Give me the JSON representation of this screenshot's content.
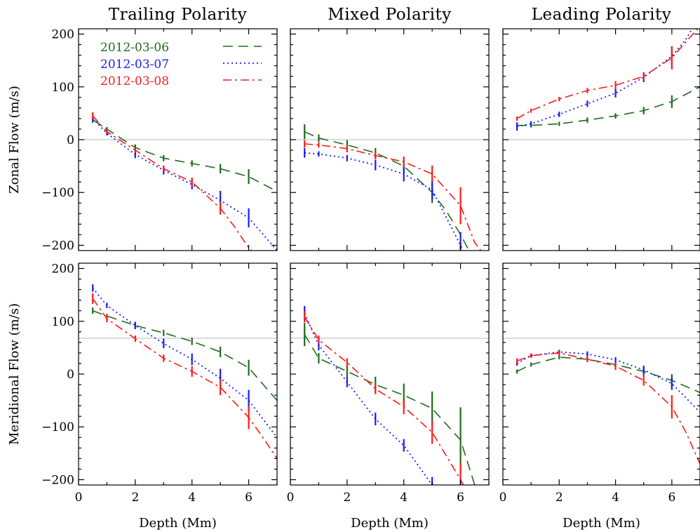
{
  "chart_data": {
    "type": "line",
    "layout": "3 columns x 2 rows",
    "column_titles": [
      "Trailing Polarity",
      "Mixed Polarity",
      "Leading Polarity"
    ],
    "row_ylabels": [
      "Zonal Flow (m/s)",
      "Meridional Flow (m/s)"
    ],
    "xlabel": "Depth (Mm)",
    "xlim": [
      0,
      7
    ],
    "ylim": [
      -210,
      210
    ],
    "xticks": [
      0,
      2,
      4,
      6
    ],
    "yticks": [
      -200,
      -100,
      0,
      100,
      200
    ],
    "xtick_labels": [
      "0",
      "2",
      "4",
      "6"
    ],
    "ytick_labels": [
      "−200",
      "−100",
      "0",
      "100",
      "200"
    ],
    "legend": {
      "placement": "top-left of first panel",
      "entries": [
        {
          "label": "2012-03-06",
          "style": "dashed",
          "color": "#1f6b1f"
        },
        {
          "label": "2012-03-07",
          "style": "dotted",
          "color": "#1a1aff"
        },
        {
          "label": "2012-03-08",
          "style": "dash-dot",
          "color": "#ff1a1a"
        }
      ]
    },
    "panels": [
      {
        "column": "Trailing Polarity",
        "row": "Zonal Flow (m/s)",
        "zero_line": 0,
        "series": [
          {
            "label": "2012-03-06",
            "x": [
              0.5,
              1,
              2,
              3,
              4,
              5,
              6,
              7
            ],
            "y": [
              38,
              20,
              -15,
              -35,
              -45,
              -55,
              -70,
              -98
            ],
            "err": [
              6,
              4,
              6,
              6,
              6,
              9,
              14,
              0
            ]
          },
          {
            "label": "2012-03-07",
            "x": [
              0.5,
              1,
              2,
              3,
              4,
              5,
              6,
              7
            ],
            "y": [
              40,
              12,
              -28,
              -58,
              -85,
              -115,
              -148,
              -210
            ],
            "err": [
              6,
              4,
              7,
              8,
              9,
              18,
              18,
              0
            ]
          },
          {
            "label": "2012-03-08",
            "x": [
              0.5,
              1,
              2,
              3,
              4,
              5,
              5.5,
              6,
              6.5
            ],
            "y": [
              45,
              15,
              -20,
              -55,
              -80,
              -130,
              -165,
              -205,
              -230
            ],
            "err": [
              7,
              4,
              5,
              6,
              8,
              12,
              0,
              0,
              0
            ]
          }
        ]
      },
      {
        "column": "Mixed Polarity",
        "row": "Zonal Flow (m/s)",
        "zero_line": 0,
        "series": [
          {
            "label": "2012-03-06",
            "x": [
              0.5,
              1,
              2,
              3,
              4,
              5,
              5.5,
              6,
              6.5
            ],
            "y": [
              15,
              3,
              -10,
              -25,
              -50,
              -100,
              -135,
              -180,
              -230
            ],
            "err": [
              14,
              7,
              9,
              9,
              12,
              20,
              0,
              0,
              0
            ]
          },
          {
            "label": "2012-03-07",
            "x": [
              0.5,
              1,
              2,
              3,
              4,
              5,
              6,
              6.5
            ],
            "y": [
              -25,
              -27,
              -35,
              -48,
              -65,
              -95,
              -200,
              -260
            ],
            "err": [
              9,
              5,
              6,
              10,
              14,
              18,
              25,
              0
            ]
          },
          {
            "label": "2012-03-08",
            "x": [
              0.5,
              1,
              2,
              3,
              4,
              5,
              6,
              6.5,
              7
            ],
            "y": [
              -8,
              -10,
              -17,
              -30,
              -42,
              -65,
              -125,
              -195,
              -230
            ],
            "err": [
              7,
              5,
              7,
              7,
              10,
              16,
              35,
              0,
              0
            ]
          }
        ]
      },
      {
        "column": "Leading Polarity",
        "row": "Zonal Flow (m/s)",
        "zero_line": 0,
        "series": [
          {
            "label": "2012-03-06",
            "x": [
              0.5,
              1,
              2,
              3,
              4,
              5,
              6,
              7
            ],
            "y": [
              27,
              27,
              30,
              37,
              45,
              55,
              72,
              100
            ],
            "err": [
              4,
              4,
              4,
              5,
              5,
              7,
              12,
              0
            ]
          },
          {
            "label": "2012-03-07",
            "x": [
              0.5,
              1,
              2,
              3,
              4,
              5,
              6,
              6.5,
              7
            ],
            "y": [
              25,
              30,
              48,
              68,
              88,
              118,
              158,
              190,
              235
            ],
            "err": [
              8,
              5,
              5,
              6,
              8,
              9,
              18,
              0,
              0
            ]
          },
          {
            "label": "2012-03-08",
            "x": [
              0.5,
              1,
              2,
              3,
              4,
              5,
              6,
              6.5,
              7
            ],
            "y": [
              40,
              55,
              77,
              93,
              103,
              120,
              155,
              185,
              215
            ],
            "err": [
              4,
              4,
              4,
              5,
              8,
              8,
              22,
              0,
              0
            ]
          }
        ]
      },
      {
        "column": "Trailing Polarity",
        "row": "Meridional Flow (m/s)",
        "zero_line": 68,
        "series": [
          {
            "label": "2012-03-06",
            "x": [
              0.5,
              1,
              2,
              3,
              4,
              5,
              6,
              7
            ],
            "y": [
              120,
              110,
              92,
              78,
              62,
              42,
              12,
              -50
            ],
            "err": [
              6,
              4,
              6,
              6,
              7,
              10,
              15,
              0
            ]
          },
          {
            "label": "2012-03-07",
            "x": [
              0.5,
              1,
              2,
              3,
              4,
              5,
              6,
              6.5,
              7
            ],
            "y": [
              163,
              130,
              92,
              58,
              28,
              -8,
              -50,
              -85,
              -120
            ],
            "err": [
              7,
              5,
              7,
              9,
              11,
              18,
              20,
              0,
              0
            ]
          },
          {
            "label": "2012-03-08",
            "x": [
              0.5,
              1,
              2,
              3,
              4,
              5,
              6,
              6.5,
              7
            ],
            "y": [
              143,
              105,
              67,
              30,
              5,
              -25,
              -82,
              -120,
              -160
            ],
            "err": [
              10,
              7,
              6,
              7,
              10,
              15,
              22,
              0,
              0
            ]
          }
        ]
      },
      {
        "column": "Mixed Polarity",
        "row": "Meridional Flow (m/s)",
        "zero_line": 68,
        "series": [
          {
            "label": "2012-03-06",
            "x": [
              0.5,
              1,
              2,
              3,
              4,
              5,
              6,
              6.5
            ],
            "y": [
              75,
              30,
              5,
              -20,
              -40,
              -65,
              -125,
              -210
            ],
            "err": [
              22,
              10,
              10,
              15,
              22,
              32,
              62,
              0
            ]
          },
          {
            "label": "2012-03-07",
            "x": [
              0.5,
              1,
              2,
              3,
              4,
              5,
              5.5
            ],
            "y": [
              115,
              55,
              -15,
              -85,
              -135,
              -210,
              -250
            ],
            "err": [
              14,
              10,
              10,
              12,
              12,
              15,
              0
            ]
          },
          {
            "label": "2012-03-08",
            "x": [
              0.5,
              1,
              2,
              3,
              4,
              5,
              6,
              6.5
            ],
            "y": [
              108,
              65,
              22,
              -28,
              -62,
              -110,
              -200,
              -250
            ],
            "err": [
              10,
              8,
              8,
              10,
              14,
              22,
              30,
              0
            ]
          }
        ]
      },
      {
        "column": "Leading Polarity",
        "row": "Meridional Flow (m/s)",
        "zero_line": 68,
        "series": [
          {
            "label": "2012-03-06",
            "x": [
              0.5,
              1,
              2,
              3,
              4,
              5,
              6,
              7
            ],
            "y": [
              5,
              18,
              32,
              28,
              18,
              5,
              -12,
              -35
            ],
            "err": [
              4,
              4,
              4,
              5,
              5,
              8,
              12,
              0
            ]
          },
          {
            "label": "2012-03-07",
            "x": [
              0.5,
              1,
              2,
              3,
              4,
              5,
              6,
              7
            ],
            "y": [
              20,
              35,
              42,
              38,
              27,
              8,
              -18,
              -72
            ],
            "err": [
              4,
              4,
              4,
              5,
              5,
              8,
              12,
              0
            ]
          },
          {
            "label": "2012-03-08",
            "x": [
              0.5,
              1,
              2,
              3,
              4,
              5,
              6,
              6.5,
              7
            ],
            "y": [
              25,
              35,
              40,
              28,
              15,
              -12,
              -62,
              -110,
              -170
            ],
            "err": [
              5,
              4,
              4,
              5,
              7,
              10,
              22,
              0,
              0
            ]
          }
        ]
      }
    ]
  }
}
